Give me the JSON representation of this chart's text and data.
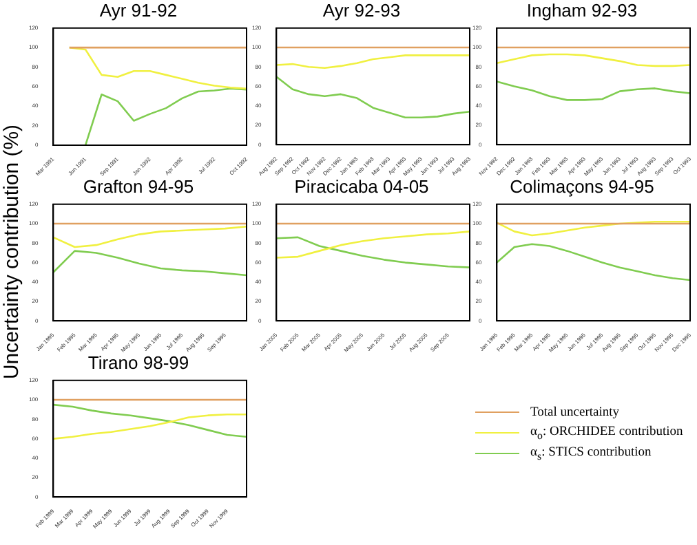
{
  "chart_data": [
    {
      "type": "line",
      "title": "Ayr 91-92",
      "categories": [
        "Mar 1991",
        null,
        "Jun 1991",
        null,
        "Sep 1991",
        null,
        "Jan 1992",
        null,
        "Apr 1992",
        null,
        "Jul 1992",
        null,
        "Oct 1992"
      ],
      "ylim": [
        0,
        120
      ],
      "yticks": [
        0,
        20,
        40,
        60,
        80,
        100,
        120
      ],
      "series": [
        {
          "color": "#e0a060",
          "values": [
            null,
            100,
            100,
            100,
            100,
            100,
            100,
            100,
            100,
            100,
            100,
            100,
            100
          ]
        },
        {
          "color": "#f0f040",
          "values": [
            null,
            100,
            98,
            72,
            70,
            76,
            76,
            72,
            68,
            64,
            61,
            59,
            58
          ]
        },
        {
          "color": "#80cc50",
          "values": [
            null,
            null,
            0,
            52,
            45,
            25,
            32,
            38,
            48,
            55,
            56,
            58,
            57
          ]
        }
      ]
    },
    {
      "type": "line",
      "title": "Ayr 92-93",
      "categories": [
        "Aug 1992",
        "Sep 1992",
        "Oct 1992",
        "Nov 1992",
        "Dec 1992",
        "Jan 1993",
        "Feb 1993",
        "Mar 1993",
        "Apr 1993",
        "May 1993",
        "Jun 1993",
        "Jul 1993",
        "Aug 1993"
      ],
      "ylim": [
        0,
        120
      ],
      "yticks": [
        0,
        20,
        40,
        60,
        80,
        100,
        120
      ],
      "series": [
        {
          "color": "#e0a060",
          "values": [
            100,
            100,
            100,
            100,
            100,
            100,
            100,
            100,
            100,
            100,
            100,
            100,
            100
          ]
        },
        {
          "color": "#f0f040",
          "values": [
            82,
            83,
            80,
            79,
            81,
            84,
            88,
            90,
            92,
            92,
            92,
            92,
            92
          ]
        },
        {
          "color": "#80cc50",
          "values": [
            70,
            57,
            52,
            50,
            52,
            48,
            38,
            33,
            28,
            28,
            29,
            32,
            34
          ]
        }
      ]
    },
    {
      "type": "line",
      "title": "Ingham 92-93",
      "categories": [
        "Nov 1992",
        "Dec 1992",
        "Jan 1993",
        "Feb 1993",
        "Mar 1993",
        "Apr 1993",
        "May 1993",
        "Jun 1993",
        "Jul 1993",
        "Aug 1993",
        "Sep 1993",
        "Oct 1993"
      ],
      "ylim": [
        0,
        120
      ],
      "yticks": [
        0,
        20,
        40,
        60,
        80,
        100,
        120
      ],
      "series": [
        {
          "color": "#e0a060",
          "values": [
            100,
            100,
            100,
            100,
            100,
            100,
            100,
            100,
            100,
            100,
            100,
            100
          ]
        },
        {
          "color": "#f0f040",
          "values": [
            84,
            88,
            92,
            93,
            93,
            92,
            89,
            86,
            82,
            81,
            81,
            82
          ]
        },
        {
          "color": "#80cc50",
          "values": [
            65,
            60,
            56,
            50,
            46,
            46,
            47,
            55,
            57,
            58,
            55,
            53
          ]
        }
      ]
    },
    {
      "type": "line",
      "title": "Grafton 94-95",
      "ylabel": "Uncertainty contribution (%)",
      "categories": [
        "Jan 1995",
        "Feb 1995",
        "Mar 1995",
        "Apr 1995",
        "May 1995",
        "Jun 1995",
        "Jul 1995",
        "Aug 1995",
        "Sep 1995",
        null
      ],
      "ylim": [
        0,
        120
      ],
      "yticks": [
        0,
        20,
        40,
        60,
        80,
        100,
        120
      ],
      "series": [
        {
          "color": "#e0a060",
          "values": [
            100,
            100,
            100,
            100,
            100,
            100,
            100,
            100,
            100,
            100
          ]
        },
        {
          "color": "#f0f040",
          "values": [
            86,
            76,
            78,
            84,
            89,
            92,
            93,
            94,
            95,
            97
          ]
        },
        {
          "color": "#80cc50",
          "values": [
            50,
            72,
            70,
            65,
            59,
            54,
            52,
            51,
            49,
            47
          ]
        }
      ]
    },
    {
      "type": "line",
      "title": "Piracicaba 04-05",
      "categories": [
        "Jan 2005",
        "Feb 2005",
        "Mar 2005",
        "Apr 2005",
        "May 2005",
        "Jun 2005",
        "Jul 2005",
        "Aug 2005",
        "Sep 2005",
        null
      ],
      "ylim": [
        0,
        120
      ],
      "yticks": [
        0,
        20,
        40,
        60,
        80,
        100,
        120
      ],
      "series": [
        {
          "color": "#e0a060",
          "values": [
            100,
            100,
            100,
            100,
            100,
            100,
            100,
            100,
            100,
            100
          ]
        },
        {
          "color": "#f0f040",
          "values": [
            65,
            66,
            72,
            78,
            82,
            85,
            87,
            89,
            90,
            92
          ]
        },
        {
          "color": "#80cc50",
          "values": [
            85,
            86,
            77,
            72,
            67,
            63,
            60,
            58,
            56,
            55
          ]
        }
      ]
    },
    {
      "type": "line",
      "title": "Colimaçons 94-95",
      "categories": [
        "Jan 1995",
        "Feb 1995",
        "Mar 1995",
        "Apr 1995",
        "May 1995",
        "Jun 1995",
        "Jul 1995",
        "Aug 1995",
        "Sep 1995",
        "Oct 1995",
        "Nov 1995",
        "Dec 1995"
      ],
      "ylim": [
        0,
        120
      ],
      "yticks": [
        0,
        20,
        40,
        60,
        80,
        100,
        120
      ],
      "series": [
        {
          "color": "#e0a060",
          "values": [
            100,
            100,
            100,
            100,
            100,
            100,
            100,
            100,
            100,
            100,
            100,
            100
          ]
        },
        {
          "color": "#f0f040",
          "values": [
            101,
            92,
            88,
            90,
            93,
            96,
            98,
            100,
            101,
            102,
            102,
            102
          ]
        },
        {
          "color": "#80cc50",
          "values": [
            60,
            76,
            79,
            77,
            72,
            66,
            60,
            55,
            51,
            47,
            44,
            42
          ]
        }
      ]
    },
    {
      "type": "line",
      "title": "Tirano 98-99",
      "legend": "right",
      "categories": [
        "Feb 1999",
        "Mar 1999",
        "Apr 1999",
        "May 1999",
        "Jun 1999",
        "Jul 1999",
        "Aug 1999",
        "Sep 1999",
        "Oct 1999",
        "Nov 1999",
        null
      ],
      "ylim": [
        0,
        120
      ],
      "yticks": [
        0,
        20,
        40,
        60,
        80,
        100,
        120
      ],
      "series": [
        {
          "name": "Total uncertainty",
          "color": "#e0a060",
          "values": [
            100,
            100,
            100,
            100,
            100,
            100,
            100,
            100,
            100,
            100,
            100
          ]
        },
        {
          "name": "α$_{o}$: ORCHIDEE contribution",
          "color": "#f0f040",
          "values": [
            60,
            62,
            65,
            67,
            70,
            73,
            77,
            82,
            84,
            85,
            85
          ]
        },
        {
          "name": "α$_{s}$: STICS contribution",
          "color": "#80cc50",
          "values": [
            95,
            93,
            89,
            86,
            84,
            81,
            78,
            74,
            69,
            64,
            62
          ]
        }
      ]
    }
  ]
}
